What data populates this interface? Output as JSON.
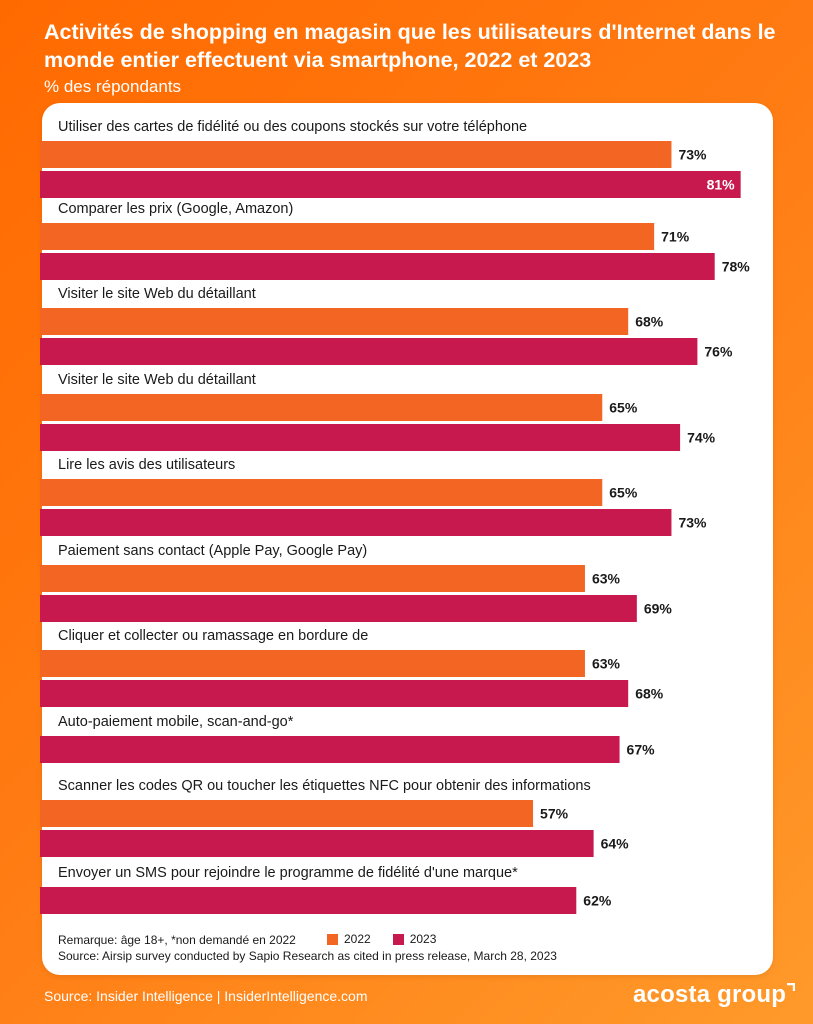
{
  "header": {
    "title": "Activités de shopping en magasin que les utilisateurs d'Internet dans le monde entier effectuent via smartphone, 2022 et 2023",
    "subtitle": "% des répondants"
  },
  "chart_data": {
    "type": "bar",
    "orientation": "horizontal",
    "xlim": [
      0,
      100
    ],
    "grid": false,
    "legend_position": "bottom",
    "categories": [
      "Utiliser des cartes de fidélité ou des coupons stockés sur votre téléphone",
      "Comparer les prix (Google, Amazon)",
      "Visiter le site Web du détaillant",
      "Visiter le site Web du détaillant",
      "Lire les avis des utilisateurs",
      "Paiement sans contact (Apple Pay, Google Pay)",
      "Cliquer et collecter ou ramassage en bordure de",
      "Auto-paiement mobile, scan-and-go*",
      "Scanner les codes QR ou toucher les étiquettes NFC pour obtenir des informations",
      "Envoyer un SMS pour rejoindre le programme de fidélité d'une marque*"
    ],
    "series": [
      {
        "name": "2022",
        "color": "#f26522",
        "values": [
          73,
          71,
          68,
          65,
          65,
          63,
          63,
          null,
          57,
          null
        ]
      },
      {
        "name": "2023",
        "color": "#c8194f",
        "values": [
          81,
          78,
          76,
          74,
          73,
          69,
          68,
          67,
          64,
          62
        ]
      }
    ],
    "label_suffix": "%"
  },
  "notes": {
    "remark": "Remarque: âge 18+, *non demandé en 2022",
    "source_line": "Source: Airsip survey conducted by Sapio Research as cited in press release, March 28, 2023"
  },
  "footer": {
    "source": "Source: Insider Intelligence | InsiderIntelligence.com",
    "logo": "acosta group"
  }
}
